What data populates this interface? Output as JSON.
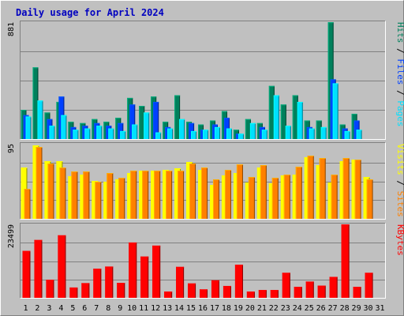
{
  "chart_data": {
    "type": "bar",
    "title": "Daily usage for April 2024",
    "days": [
      "1",
      "2",
      "3",
      "4",
      "5",
      "6",
      "7",
      "8",
      "9",
      "10",
      "11",
      "12",
      "13",
      "14",
      "15",
      "16",
      "17",
      "18",
      "19",
      "20",
      "21",
      "22",
      "23",
      "24",
      "25",
      "26",
      "27",
      "28",
      "29",
      "30",
      "31"
    ],
    "weekend_days": [
      "6",
      "7",
      "13",
      "14",
      "20",
      "21",
      "27",
      "28"
    ],
    "colors": {
      "hits": "#00805c",
      "files": "#0040ff",
      "pages": "#00e0ff",
      "visits": "#ff8000",
      "sites": "#ffff00",
      "kbytes": "#ff0000",
      "weekday_label": "#000000",
      "weekend_label": "#00805c"
    },
    "panels": [
      {
        "name": "requests",
        "ymax_label": "881",
        "ymax": 881,
        "legend": [
          {
            "text": "Pages",
            "color": "#00e0ff"
          },
          {
            "text": "Files",
            "color": "#0040ff"
          },
          {
            "text": "Hits",
            "color": "#00805c"
          }
        ],
        "series": [
          {
            "name": "Hits",
            "values": [
              220,
              540,
              200,
              280,
              130,
              120,
              150,
              130,
              160,
              310,
              250,
              320,
              130,
              330,
              130,
              110,
              140,
              210,
              70,
              150,
              120,
              400,
              260,
              330,
              140,
              140,
              880,
              110,
              190,
              0
            ]
          },
          {
            "name": "Files",
            "values": [
              180,
              0,
              150,
              320,
              90,
              100,
              120,
              100,
              120,
              260,
              0,
              280,
              90,
              0,
              120,
              70,
              110,
              160,
              40,
              0,
              90,
              0,
              0,
              0,
              90,
              0,
              450,
              80,
              140,
              0
            ]
          },
          {
            "name": "Pages",
            "values": [
              170,
              290,
              100,
              180,
              70,
              80,
              100,
              80,
              60,
              110,
              200,
              50,
              80,
              150,
              60,
              70,
              90,
              80,
              40,
              120,
              70,
              330,
              100,
              280,
              80,
              90,
              420,
              60,
              70,
              0
            ]
          }
        ]
      },
      {
        "name": "visits",
        "ymax_label": "95",
        "ymax": 95,
        "legend": [
          {
            "text": "Sites",
            "color": "#ff8000"
          },
          {
            "text": "Visits",
            "color": "#ffff00"
          }
        ],
        "series": [
          {
            "name": "Visits",
            "values": [
              65,
              93,
              73,
              73,
              54,
              56,
              48,
              47,
              50,
              58,
              61,
              61,
              62,
              64,
              72,
              62,
              43,
              55,
              58,
              46,
              65,
              45,
              55,
              56,
              78,
              68,
              46,
              73,
              75,
              53
            ]
          },
          {
            "name": "Sites",
            "values": [
              38,
              91,
              70,
              65,
              60,
              60,
              47,
              58,
              52,
              61,
              61,
              61,
              61,
              61,
              70,
              65,
              50,
              62,
              69,
              53,
              68,
              52,
              56,
              66,
              80,
              77,
              56,
              77,
              75,
              50
            ]
          }
        ]
      },
      {
        "name": "kbytes",
        "ymax_label": "23499",
        "ymax": 23499,
        "legend": [
          {
            "text": "KBytes",
            "color": "#ff0000"
          }
        ],
        "series": [
          {
            "name": "KBytes",
            "values": [
              15000,
              18500,
              5800,
              20000,
              3300,
              4700,
              9300,
              10000,
              4800,
              17700,
              13200,
              16700,
              2000,
              9900,
              4600,
              2700,
              5600,
              3800,
              10600,
              2000,
              2500,
              2500,
              8000,
              3500,
              5200,
              3900,
              6700,
              23499,
              3500,
              8000
            ]
          }
        ]
      }
    ]
  }
}
